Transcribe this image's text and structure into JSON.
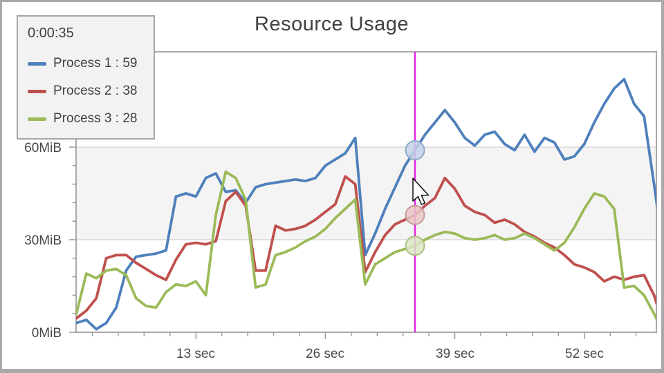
{
  "window": {
    "title": "Resource Usage"
  },
  "tooltip": {
    "time": "0:00:35",
    "entries": [
      {
        "name": "Process 1",
        "value": 59,
        "display": "Process 1 : 59",
        "color": "#4E80BC",
        "dot_fill": "#C3D2E7",
        "dot_stroke": "#8FA8C8"
      },
      {
        "name": "Process 2",
        "value": 38,
        "display": "Process 2 : 38",
        "color": "#BF504D",
        "dot_fill": "#E9C6C5",
        "dot_stroke": "#C89B99"
      },
      {
        "name": "Process 3",
        "value": 28,
        "display": "Process 3 : 28",
        "color": "#9BBB59",
        "dot_fill": "#DCE7C4",
        "dot_stroke": "#AEC080"
      }
    ]
  },
  "axes": {
    "y_tick_labels": [
      "60MiB",
      "30MiB",
      "0MiB"
    ],
    "x_tick_labels": [
      "13 sec",
      "26 sec",
      "39 sec",
      "52 sec"
    ]
  },
  "cursor": {
    "time_seconds": 35,
    "line_color": "#E522E5"
  },
  "chart_data": {
    "type": "line",
    "title": "Resource Usage",
    "x_unit": "seconds",
    "y_unit": "MiB",
    "x_ticks": [
      13,
      26,
      39,
      52
    ],
    "y_ticks": [
      0,
      30,
      60
    ],
    "xlim": [
      1,
      59.3
    ],
    "ylim": [
      0,
      90.7
    ],
    "shaded_band_y": [
      30,
      60
    ],
    "grid": "horizontal-at-30-and-60",
    "legend_position": "top-left",
    "cursor_x": 35,
    "x": [
      1,
      2,
      3,
      4,
      5,
      6,
      7,
      8,
      9,
      10,
      11,
      12,
      13,
      14,
      15,
      16,
      17,
      18,
      19,
      20,
      21,
      22,
      23,
      24,
      25,
      26,
      27,
      28,
      29,
      30,
      31,
      32,
      33,
      34,
      35,
      36,
      37,
      38,
      39,
      40,
      41,
      42,
      43,
      44,
      45,
      46,
      47,
      48,
      49,
      50,
      51,
      52,
      53,
      54,
      55,
      56,
      57,
      58,
      59,
      59.3
    ],
    "series": [
      {
        "name": "Process 1",
        "color": "#4E80BC",
        "cursor_value": 59,
        "values": [
          3,
          4,
          1,
          3,
          8,
          20,
          24.5,
          25,
          25.5,
          26.5,
          44,
          45,
          44,
          50,
          51.5,
          45.5,
          46,
          42,
          47,
          48,
          48.5,
          49,
          49.5,
          49,
          50,
          54,
          56,
          58,
          63,
          25,
          32,
          40,
          47,
          54,
          59,
          64,
          68,
          72,
          68,
          63,
          60.5,
          64,
          65,
          61,
          59,
          64,
          58.5,
          63,
          61.5,
          56,
          57,
          61,
          68,
          74,
          79,
          82,
          74,
          70,
          48,
          41
        ]
      },
      {
        "name": "Process 2",
        "color": "#BF504D",
        "cursor_value": 38,
        "values": [
          4.5,
          7,
          11,
          24,
          25,
          25,
          22.5,
          20.5,
          18.5,
          17,
          23.5,
          28.5,
          29,
          28.5,
          29.5,
          42.5,
          45.5,
          41,
          20,
          20,
          34.5,
          33,
          33.5,
          34.5,
          36.5,
          39,
          41.5,
          50.5,
          48,
          19.5,
          26,
          31.5,
          35,
          36.5,
          38,
          41,
          43.5,
          50,
          46.5,
          41,
          39,
          38,
          35.5,
          36.5,
          35,
          32.5,
          31,
          29,
          27.5,
          25,
          22,
          21,
          19.5,
          16.5,
          18,
          17,
          18,
          18.5,
          12,
          9
        ]
      },
      {
        "name": "Process 3",
        "color": "#9BBB59",
        "cursor_value": 28,
        "values": [
          6,
          19,
          17.5,
          20,
          20.5,
          18.5,
          11,
          8.5,
          8,
          13,
          15.5,
          15,
          16.5,
          12,
          38,
          52,
          50,
          43,
          14.5,
          15.5,
          25,
          26,
          27.5,
          29.5,
          31,
          33.5,
          37,
          40,
          43,
          15.5,
          22,
          24,
          26,
          27,
          28,
          30,
          31.5,
          32.5,
          32,
          30.5,
          30,
          30.5,
          31.5,
          30,
          30.5,
          32,
          30.5,
          28.5,
          26.5,
          29,
          34,
          40,
          45,
          44,
          40,
          14.5,
          15,
          12,
          6,
          4
        ]
      }
    ]
  }
}
